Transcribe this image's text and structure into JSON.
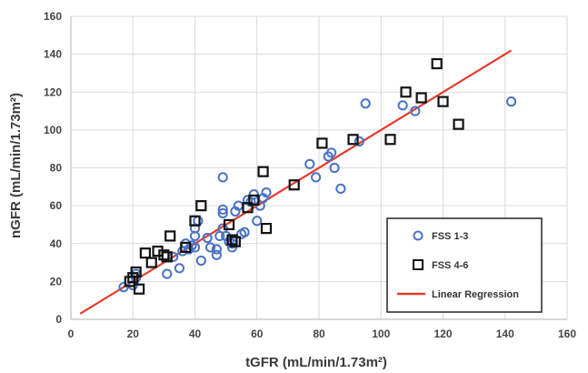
{
  "chart_data": {
    "type": "scatter",
    "xlabel": "tGFR (mL/min/1.73m²)",
    "ylabel": "nGFR (mL/min/1.73m²)",
    "xlim": [
      0,
      160
    ],
    "ylim": [
      0,
      160
    ],
    "x_ticks": [
      "0",
      "20",
      "40",
      "60",
      "80",
      "100",
      "120",
      "140",
      "160"
    ],
    "y_ticks": [
      "0",
      "20",
      "40",
      "60",
      "80",
      "100",
      "120",
      "140",
      "160"
    ],
    "grid": true,
    "legend_position": "bottom-right",
    "series": [
      {
        "name": "FSS 1-3",
        "marker": "circle",
        "color": "#4a72c4",
        "points": [
          [
            17,
            17
          ],
          [
            20,
            18
          ],
          [
            21,
            22
          ],
          [
            21,
            24
          ],
          [
            31,
            24
          ],
          [
            35,
            27
          ],
          [
            33,
            33
          ],
          [
            36,
            36
          ],
          [
            37,
            40
          ],
          [
            38,
            37
          ],
          [
            39,
            39
          ],
          [
            40,
            38
          ],
          [
            40,
            44
          ],
          [
            40,
            48
          ],
          [
            41,
            52
          ],
          [
            42,
            31
          ],
          [
            44,
            43
          ],
          [
            45,
            38
          ],
          [
            47,
            34
          ],
          [
            47,
            37
          ],
          [
            48,
            44
          ],
          [
            49,
            48
          ],
          [
            49,
            56
          ],
          [
            49,
            58
          ],
          [
            49,
            75
          ],
          [
            50,
            44
          ],
          [
            51,
            41
          ],
          [
            52,
            40
          ],
          [
            52,
            38
          ],
          [
            53,
            57
          ],
          [
            54,
            60
          ],
          [
            55,
            45
          ],
          [
            56,
            46
          ],
          [
            57,
            63
          ],
          [
            58,
            62
          ],
          [
            59,
            66
          ],
          [
            60,
            52
          ],
          [
            61,
            60
          ],
          [
            62,
            64
          ],
          [
            63,
            67
          ],
          [
            77,
            82
          ],
          [
            79,
            75
          ],
          [
            83,
            86
          ],
          [
            84,
            88
          ],
          [
            85,
            80
          ],
          [
            87,
            69
          ],
          [
            93,
            94
          ],
          [
            95,
            114
          ],
          [
            107,
            113
          ],
          [
            111,
            110
          ],
          [
            142,
            115
          ]
        ]
      },
      {
        "name": "FSS 4-6",
        "marker": "square",
        "color": "#111111",
        "points": [
          [
            19,
            20
          ],
          [
            20,
            22
          ],
          [
            21,
            25
          ],
          [
            22,
            16
          ],
          [
            24,
            35
          ],
          [
            26,
            30
          ],
          [
            28,
            36
          ],
          [
            30,
            34
          ],
          [
            31,
            33
          ],
          [
            32,
            44
          ],
          [
            37,
            38
          ],
          [
            40,
            52
          ],
          [
            42,
            60
          ],
          [
            51,
            50
          ],
          [
            52,
            42
          ],
          [
            53,
            41
          ],
          [
            57,
            59
          ],
          [
            59,
            63
          ],
          [
            62,
            78
          ],
          [
            63,
            48
          ],
          [
            72,
            71
          ],
          [
            81,
            93
          ],
          [
            91,
            95
          ],
          [
            103,
            95
          ],
          [
            108,
            120
          ],
          [
            113,
            117
          ],
          [
            118,
            135
          ],
          [
            120,
            115
          ],
          [
            125,
            103
          ]
        ]
      },
      {
        "name": "Linear Regression",
        "marker": "line",
        "color": "#e53b2c",
        "line": [
          [
            3,
            3
          ],
          [
            142,
            142
          ]
        ]
      }
    ]
  }
}
